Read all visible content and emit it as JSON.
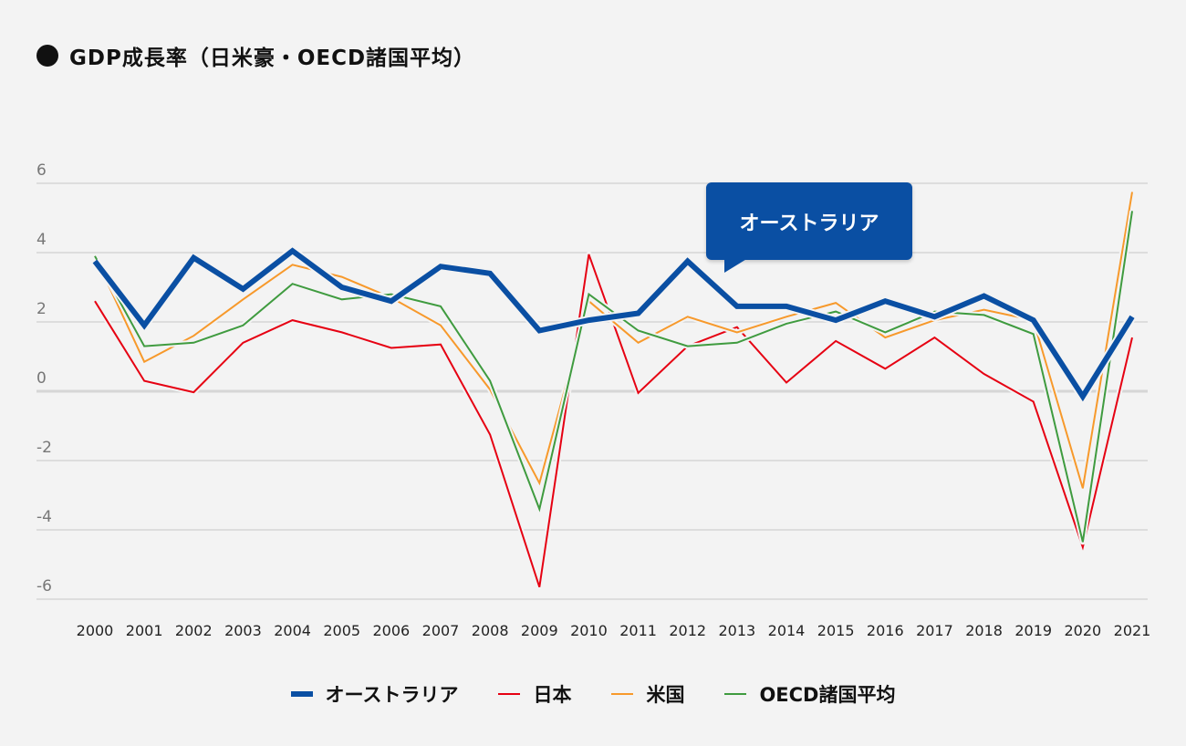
{
  "title": "GDP成長率（日米豪・OECD諸国平均）",
  "tooltip": "オーストラリア",
  "chart_data": {
    "type": "line",
    "title": "GDP成長率（日米豪・OECD諸国平均）",
    "x": [
      "2000",
      "2001",
      "2002",
      "2003",
      "2004",
      "2005",
      "2006",
      "2007",
      "2008",
      "2009",
      "2010",
      "2011",
      "2012",
      "2013",
      "2014",
      "2015",
      "2016",
      "2017",
      "2018",
      "2019",
      "2020",
      "2021"
    ],
    "yticks": [
      6,
      4,
      2,
      0,
      -2,
      -4,
      -6
    ],
    "ylim": [
      -6.5,
      6.5
    ],
    "grid": true,
    "legend": "bottom",
    "series": [
      {
        "name": "日本",
        "color": "#e60012",
        "width": 2,
        "values": [
          2.6,
          0.3,
          -0.03,
          1.4,
          2.05,
          1.7,
          1.25,
          1.35,
          -1.25,
          -5.65,
          3.95,
          -0.05,
          1.3,
          1.85,
          0.25,
          1.45,
          0.65,
          1.55,
          0.5,
          -0.3,
          -4.5,
          1.55
        ]
      },
      {
        "name": "米国",
        "color": "#f7992b",
        "width": 2,
        "values": [
          3.9,
          0.85,
          1.6,
          2.65,
          3.65,
          3.3,
          2.7,
          1.9,
          0.05,
          -2.65,
          2.6,
          1.4,
          2.15,
          1.7,
          2.15,
          2.55,
          1.55,
          2.05,
          2.35,
          2.05,
          -2.8,
          5.75
        ]
      },
      {
        "name": "OECD諸国平均",
        "color": "#3f9b3f",
        "width": 2,
        "values": [
          3.9,
          1.3,
          1.4,
          1.9,
          3.1,
          2.65,
          2.8,
          2.45,
          0.3,
          -3.4,
          2.8,
          1.75,
          1.3,
          1.4,
          1.95,
          2.3,
          1.7,
          2.3,
          2.2,
          1.65,
          -4.35,
          5.2
        ]
      },
      {
        "name": "オーストラリア",
        "color": "#0a4fa3",
        "width": 6,
        "values": [
          3.75,
          1.9,
          3.85,
          2.95,
          4.05,
          3.0,
          2.6,
          3.6,
          3.4,
          1.75,
          2.05,
          2.25,
          3.75,
          2.45,
          2.45,
          2.05,
          2.6,
          2.15,
          2.75,
          2.05,
          -0.15,
          2.15
        ]
      }
    ],
    "legend_order": [
      "オーストラリア",
      "日本",
      "米国",
      "OECD諸国平均"
    ]
  }
}
